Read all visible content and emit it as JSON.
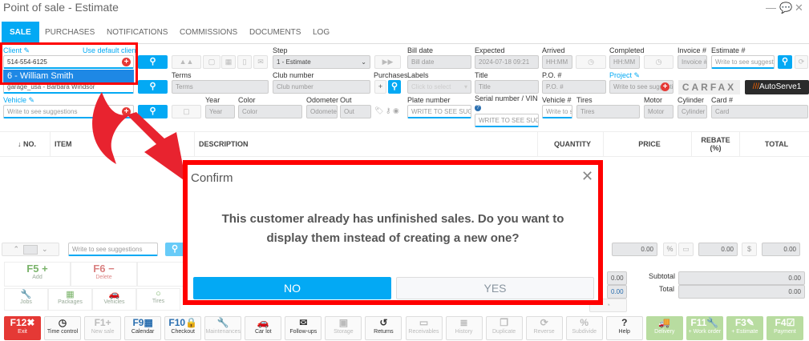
{
  "window": {
    "title": "Point of sale - Estimate",
    "controls": [
      "minimize-icon",
      "chat-icon",
      "close-icon"
    ]
  },
  "tabs": [
    "SALE",
    "PURCHASES",
    "NOTIFICATIONS",
    "COMMISSIONS",
    "DOCUMENTS",
    "LOG"
  ],
  "client": {
    "label": "Client",
    "default_link": "Use default client",
    "value": "514-554-6125",
    "suggestion": "6 - William Smith",
    "second_value": "garage_usa - Barbara Windsor"
  },
  "vehicle": {
    "label": "Vehicle",
    "placeholder": "Write to see suggestions"
  },
  "fields": {
    "step": {
      "label": "Step",
      "value": "1 - Estimate"
    },
    "bill_date": {
      "label": "Bill date",
      "placeholder": "Bill date"
    },
    "expected": {
      "label": "Expected",
      "value": "2024-07-18 09:21"
    },
    "arrived": {
      "label": "Arrived",
      "placeholder": "HH:MM"
    },
    "completed": {
      "label": "Completed",
      "placeholder": "HH:MM"
    },
    "invoice": {
      "label": "Invoice #",
      "placeholder": "Invoice #"
    },
    "estimate": {
      "label": "Estimate #",
      "placeholder": "Write to see suggestions"
    },
    "terms": {
      "label": "Terms",
      "placeholder": "Terms"
    },
    "club": {
      "label": "Club number",
      "placeholder": "Club number"
    },
    "purchases": {
      "label": "Purchases"
    },
    "labels": {
      "label": "Labels",
      "placeholder": "Click to select"
    },
    "title": {
      "label": "Title",
      "placeholder": "Title"
    },
    "po": {
      "label": "P.O. #",
      "placeholder": "P.O. #"
    },
    "project": {
      "label": "Project",
      "placeholder": "Write to see suggestions"
    },
    "year": {
      "label": "Year",
      "placeholder": "Year"
    },
    "color": {
      "label": "Color",
      "placeholder": "Color"
    },
    "odometer": {
      "label": "Odometer",
      "placeholder": "Odometer"
    },
    "out": {
      "label": "Out",
      "placeholder": "Out"
    },
    "plate": {
      "label": "Plate number",
      "placeholder": "WRITE TO SEE SUGGESTIONS"
    },
    "serial": {
      "label": "Serial number / VIN",
      "placeholder": "WRITE TO SEE SUGGESTIONS"
    },
    "vehicle_no": {
      "label": "Vehicle #",
      "placeholder": "Write to see"
    },
    "tires": {
      "label": "Tires",
      "placeholder": "Tires"
    },
    "motor": {
      "label": "Motor",
      "placeholder": "Motor"
    },
    "cylinder": {
      "label": "Cylinder",
      "placeholder": "Cylinder"
    },
    "card": {
      "label": "Card #",
      "placeholder": "Card"
    }
  },
  "logos": {
    "carfax": "CARFAX",
    "autoserve": "AutoServe1"
  },
  "table": {
    "columns": [
      "↓ NO.",
      "ITEM",
      "DESCRIPTION",
      "QUANTITY",
      "PRICE",
      "REBATE (%)",
      "TOTAL"
    ]
  },
  "bottom": {
    "search_placeholder": "Write to see suggestions",
    "amounts": [
      "0.00",
      "0.00",
      "0.00"
    ],
    "left_amounts": [
      "0.00",
      "0.00"
    ],
    "subtotal_label": "Subtotal",
    "subtotal": "0.00",
    "total_label": "Total",
    "total": "0.00"
  },
  "actions": [
    {
      "key": "F5",
      "icon": "+",
      "label": "Add"
    },
    {
      "key": "F6",
      "icon": "−",
      "label": "Delete"
    }
  ],
  "categories": [
    {
      "icon": "🔧",
      "label": "Jobs"
    },
    {
      "icon": "▦",
      "label": "Packages"
    },
    {
      "icon": "🚗",
      "label": "Vehicles"
    },
    {
      "icon": "○",
      "label": "Tires"
    }
  ],
  "toolbar": [
    {
      "key": "F12",
      "icon": "✖",
      "label": "Exit",
      "style": "red"
    },
    {
      "key": "",
      "icon": "◷",
      "label": "Time control",
      "style": ""
    },
    {
      "key": "F1",
      "icon": "+",
      "label": "New sale",
      "style": "dis"
    },
    {
      "key": "F9",
      "icon": "▦",
      "label": "Calendar",
      "style": "blue"
    },
    {
      "key": "F10",
      "icon": "🔒",
      "label": "Checkout",
      "style": "blue"
    },
    {
      "key": "",
      "icon": "🔧",
      "label": "Maintenances",
      "style": "dis"
    },
    {
      "key": "",
      "icon": "🚗",
      "label": "Car lot",
      "style": ""
    },
    {
      "key": "",
      "icon": "✉",
      "label": "Follow-ups",
      "style": ""
    },
    {
      "key": "",
      "icon": "▣",
      "label": "Storage",
      "style": "dis"
    },
    {
      "key": "",
      "icon": "↺",
      "label": "Returns",
      "style": ""
    },
    {
      "key": "",
      "icon": "▭",
      "label": "Receivables",
      "style": "dis"
    },
    {
      "key": "",
      "icon": "≣",
      "label": "History",
      "style": "dis"
    },
    {
      "key": "",
      "icon": "❐",
      "label": "Duplicate",
      "style": "dis"
    },
    {
      "key": "",
      "icon": "⟳",
      "label": "Reverse",
      "style": "dis"
    },
    {
      "key": "",
      "icon": "%",
      "label": "Subdivide",
      "style": "dis"
    },
    {
      "key": "",
      "icon": "?",
      "label": "Help",
      "style": ""
    },
    {
      "key": "",
      "icon": "🚚",
      "label": "Delivery",
      "style": "green"
    },
    {
      "key": "F11",
      "icon": "🔧",
      "label": "+ Work order",
      "style": "green"
    },
    {
      "key": "F3",
      "icon": "✎",
      "label": "+ Estimate",
      "style": "green"
    },
    {
      "key": "F4",
      "icon": "☑",
      "label": "Payment",
      "style": "green"
    }
  ],
  "dialog": {
    "title": "Confirm",
    "message": "This customer already has unfinished sales. Do you want to display them instead of creating a new one?",
    "no": "NO",
    "yes": "YES"
  },
  "colors": {
    "accent": "#03a9f4",
    "highlight": "#ff0000",
    "arrow": "#e8232f"
  }
}
